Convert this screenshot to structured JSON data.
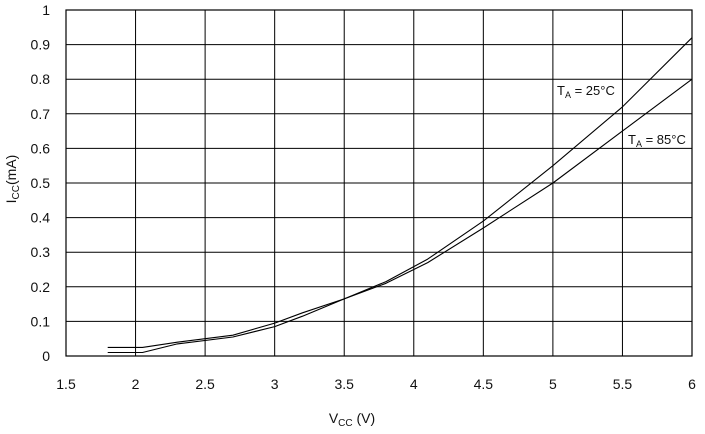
{
  "chart_data": {
    "type": "line",
    "title": "",
    "xlabel": {
      "main": "V",
      "sub": "CC",
      "unit": " (V)"
    },
    "ylabel": {
      "main": "I",
      "sub": "CC",
      "unit": "(mA)"
    },
    "xlim": [
      1.5,
      6
    ],
    "ylim": [
      0,
      1
    ],
    "xticks": [
      1.5,
      2,
      2.5,
      3,
      3.5,
      4,
      4.5,
      5,
      5.5,
      6
    ],
    "yticks": [
      0,
      0.1,
      0.2,
      0.3,
      0.4,
      0.5,
      0.6,
      0.7,
      0.8,
      0.9,
      1
    ],
    "xtick_labels": [
      "1.5",
      "2",
      "2.5",
      "3",
      "3.5",
      "4",
      "4.5",
      "5",
      "5.5",
      "6"
    ],
    "ytick_labels": [
      "0",
      "0.1",
      "0.2",
      "0.3",
      "0.4",
      "0.5",
      "0.6",
      "0.7",
      "0.8",
      "0.9",
      "1"
    ],
    "grid": true,
    "legend": "inline labels near line ends",
    "series": [
      {
        "name": "TA = 25°C",
        "label_main": "T",
        "label_sub": "A",
        "label_rest": " = 25°C",
        "color": "#000000",
        "x": [
          1.8,
          2.05,
          2.3,
          2.7,
          3.0,
          3.2,
          3.5,
          3.8,
          4.1,
          4.5,
          5.0,
          5.5,
          6.0
        ],
        "y": [
          0.025,
          0.025,
          0.04,
          0.06,
          0.095,
          0.125,
          0.165,
          0.215,
          0.28,
          0.39,
          0.55,
          0.72,
          0.92
        ]
      },
      {
        "name": "TA = 85°C",
        "label_main": "T",
        "label_sub": "A",
        "label_rest": " = 85°C",
        "color": "#000000",
        "x": [
          1.8,
          2.05,
          2.3,
          2.7,
          3.0,
          3.2,
          3.5,
          3.8,
          4.1,
          4.5,
          5.0,
          5.5,
          6.0
        ],
        "y": [
          0.01,
          0.01,
          0.035,
          0.055,
          0.085,
          0.115,
          0.165,
          0.21,
          0.27,
          0.37,
          0.5,
          0.65,
          0.8
        ]
      }
    ]
  }
}
